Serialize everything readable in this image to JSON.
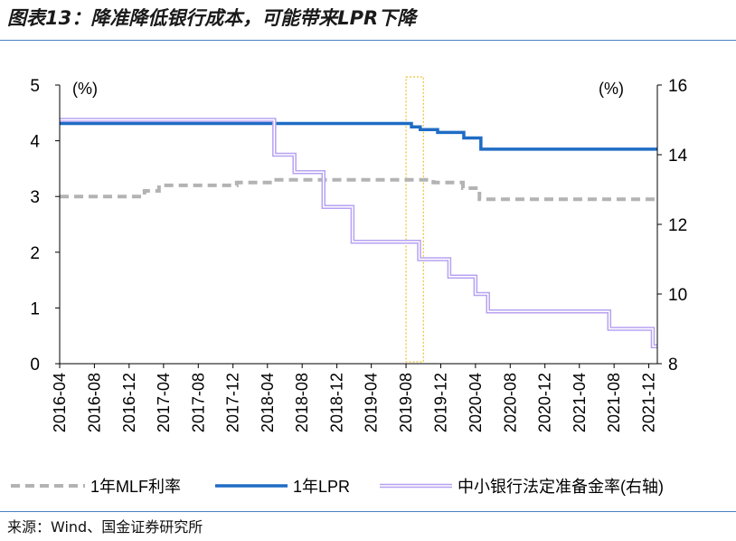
{
  "figure": {
    "title": "图表13：降准降低银行成本，可能带来LPR下降",
    "source": "来源：Wind、国金证券研究所"
  },
  "chart_data": {
    "type": "line",
    "x_ticks": [
      "2016-04",
      "2016-08",
      "2016-12",
      "2017-04",
      "2017-08",
      "2017-12",
      "2018-04",
      "2018-08",
      "2018-12",
      "2019-04",
      "2019-08",
      "2019-12",
      "2020-04",
      "2020-08",
      "2020-12",
      "2021-04",
      "2021-08",
      "2021-12"
    ],
    "x_range": [
      "2016-04-01",
      "2021-12-31"
    ],
    "y_left": {
      "label": "(%)",
      "range": [
        0,
        5
      ],
      "ticks": [
        "0",
        "1",
        "2",
        "3",
        "4",
        "5"
      ]
    },
    "y_right": {
      "label": "(%)",
      "range": [
        8,
        16
      ],
      "ticks": [
        "8",
        "10",
        "12",
        "14",
        "16"
      ]
    },
    "highlight": {
      "start": "2019-08-01",
      "end": "2019-10-01",
      "color": "#e8b400"
    },
    "legend_position": "bottom",
    "series": [
      {
        "name": "1年MLF利率",
        "axis": "left",
        "color": "#b3b3b3",
        "style": "dashed",
        "points": [
          [
            "2016-04-01",
            3.0
          ],
          [
            "2017-01-24",
            3.1
          ],
          [
            "2017-03-16",
            3.2
          ],
          [
            "2017-12-14",
            3.25
          ],
          [
            "2018-04-17",
            3.3
          ],
          [
            "2019-11-05",
            3.25
          ],
          [
            "2020-02-17",
            3.15
          ],
          [
            "2020-04-15",
            2.95
          ],
          [
            "2021-12-31",
            2.95
          ]
        ]
      },
      {
        "name": "1年LPR",
        "axis": "left",
        "color": "#1f6cc4",
        "style": "solid",
        "points": [
          [
            "2016-04-01",
            4.31
          ],
          [
            "2019-08-20",
            4.25
          ],
          [
            "2019-09-20",
            4.2
          ],
          [
            "2019-11-20",
            4.15
          ],
          [
            "2020-02-20",
            4.05
          ],
          [
            "2020-04-20",
            3.85
          ],
          [
            "2021-12-31",
            3.85
          ]
        ]
      },
      {
        "name": "中小银行法定准备金率(右轴)",
        "axis": "right",
        "color": "#b7a2f2",
        "style": "double",
        "points": [
          [
            "2016-04-01",
            15.0
          ],
          [
            "2018-04-25",
            14.0
          ],
          [
            "2018-07-05",
            13.5
          ],
          [
            "2018-10-15",
            12.5
          ],
          [
            "2019-01-25",
            11.5
          ],
          [
            "2019-09-16",
            11.0
          ],
          [
            "2019-12-31",
            10.5
          ],
          [
            "2020-04-01",
            10.0
          ],
          [
            "2020-05-15",
            9.5
          ],
          [
            "2021-07-15",
            9.0
          ],
          [
            "2021-12-15",
            8.5
          ],
          [
            "2021-12-31",
            8.5
          ]
        ]
      }
    ]
  }
}
